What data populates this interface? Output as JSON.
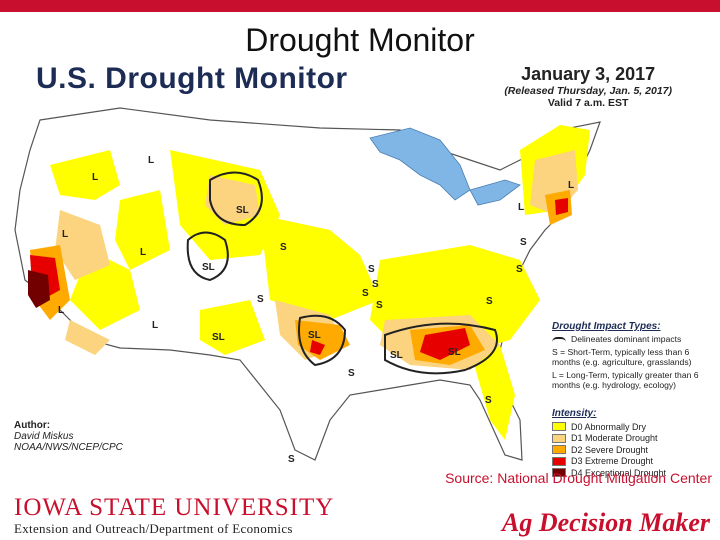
{
  "slide": {
    "title": "Drought Monitor",
    "top_bar_color": "#c8102e"
  },
  "map": {
    "title": "U.S. Drought Monitor",
    "date": "January 3, 2017",
    "released": "(Released Thursday, Jan. 5, 2017)",
    "valid": "Valid 7 a.m. EST",
    "region_labels": [
      "L",
      "L",
      "L",
      "L",
      "L",
      "L",
      "L",
      "L",
      "SL",
      "SL",
      "SL",
      "SL",
      "SL",
      "SL",
      "S",
      "S",
      "S",
      "S",
      "S",
      "S",
      "S",
      "S",
      "S",
      "S",
      "S",
      "S"
    ]
  },
  "author": {
    "heading": "Author:",
    "name": "David Miskus",
    "org": "NOAA/NWS/NCEP/CPC"
  },
  "impact_legend": {
    "title": "Drought Impact Types:",
    "delineates": "Delineates dominant impacts",
    "short_term": "S = Short-Term, typically less than 6 months (e.g. agriculture, grasslands)",
    "long_term": "L = Long-Term, typically greater than 6 months (e.g. hydrology, ecology)"
  },
  "intensity_legend": {
    "title": "Intensity:",
    "items": [
      {
        "label": "D0 Abnormally Dry",
        "color": "#ffff00"
      },
      {
        "label": "D1 Moderate Drought",
        "color": "#fcd37f"
      },
      {
        "label": "D2 Severe Drought",
        "color": "#ffaa00"
      },
      {
        "label": "D3 Extreme Drought",
        "color": "#e60000"
      },
      {
        "label": "D4 Exceptional Drought",
        "color": "#730000"
      }
    ]
  },
  "footer": {
    "university": "Iowa State University",
    "extension": "Extension and Outreach/Department of Economics",
    "source": "Source: National Drought Mitigation Center",
    "brand": "Ag Decision Maker",
    "brand_color": "#c8102e"
  }
}
